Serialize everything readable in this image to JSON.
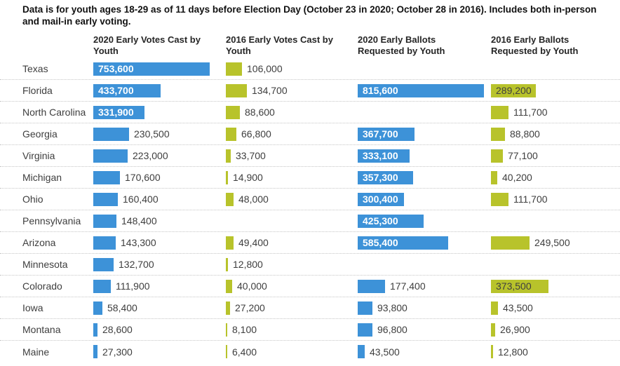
{
  "note": "Data is for youth ages 18-29 as of 11 days before Election Day (October 23 in 2020; October 28 in 2016). Includes both in-person and mail-in early voting.",
  "colors": {
    "bar_2020": "#3d92d8",
    "bar_2016": "#b8c32b",
    "inside_label_on_blue": "#ffffff",
    "inside_label_on_yellow": "#3f3f3f",
    "text_dark": "#3e3e3e",
    "separator": "#c6c6c6"
  },
  "chart_data": {
    "type": "bar",
    "orientation": "horizontal",
    "grid": false,
    "legend": "none",
    "value_axis_max": 815600,
    "categories": [
      "Texas",
      "Florida",
      "North Carolina",
      "Georgia",
      "Virginia",
      "Michigan",
      "Ohio",
      "Pennsylvania",
      "Arizona",
      "Minnesota",
      "Colorado",
      "Iowa",
      "Montana",
      "Maine"
    ],
    "series": [
      {
        "name": "2020 Early Votes Cast by Youth",
        "color_key": "bar_2020",
        "values": [
          753600,
          433700,
          331900,
          230500,
          223000,
          170600,
          160400,
          148400,
          143300,
          132700,
          111900,
          58400,
          28600,
          27300
        ],
        "labels": [
          "753,600",
          "433,700",
          "331,900",
          "230,500",
          "223,000",
          "170,600",
          "160,400",
          "148,400",
          "143,300",
          "132,700",
          "111,900",
          "58,400",
          "28,600",
          "27,300"
        ]
      },
      {
        "name": "2016 Early Votes Cast by Youth",
        "color_key": "bar_2016",
        "values": [
          106000,
          134700,
          88600,
          66800,
          33700,
          14900,
          48000,
          null,
          49400,
          12800,
          40000,
          27200,
          8100,
          6400
        ],
        "labels": [
          "106,000",
          "134,700",
          "88,600",
          "66,800",
          "33,700",
          "14,900",
          "48,000",
          null,
          "49,400",
          "12,800",
          "40,000",
          "27,200",
          "8,100",
          "6,400"
        ]
      },
      {
        "name": "2020 Early Ballots Requested by Youth",
        "color_key": "bar_2020",
        "values": [
          null,
          815600,
          null,
          367700,
          333100,
          357300,
          300400,
          425300,
          585400,
          null,
          177400,
          93800,
          96800,
          43500
        ],
        "labels": [
          null,
          "815,600",
          null,
          "367,700",
          "333,100",
          "357,300",
          "300,400",
          "425,300",
          "585,400",
          null,
          "177,400",
          "93,800",
          "96,800",
          "43,500"
        ]
      },
      {
        "name": "2016 Early Ballots Requested by Youth",
        "color_key": "bar_2016",
        "values": [
          null,
          289200,
          111700,
          88800,
          77100,
          40200,
          111700,
          null,
          249500,
          null,
          373500,
          43500,
          26900,
          12800
        ],
        "labels": [
          null,
          "289,200",
          "111,700",
          "88,800",
          "77,100",
          "40,200",
          "111,700",
          null,
          "249,500",
          null,
          "373,500",
          "43,500",
          "26,900",
          "12,800"
        ]
      }
    ]
  }
}
